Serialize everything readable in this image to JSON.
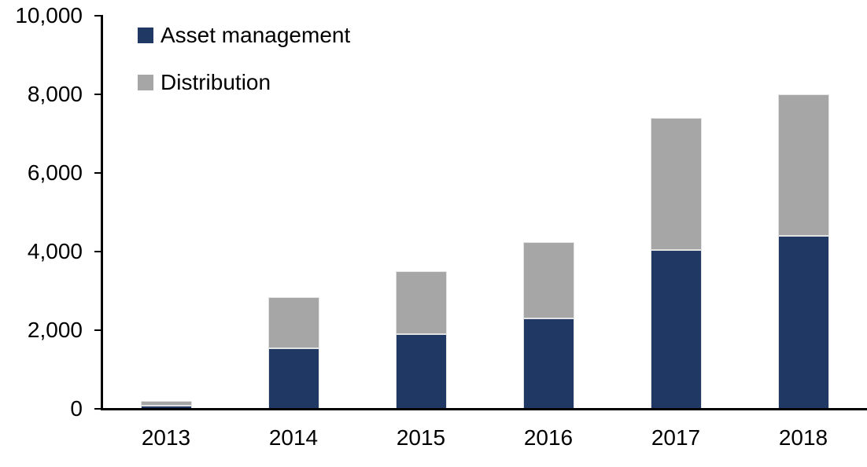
{
  "chart_data": {
    "type": "bar",
    "stacked": true,
    "title": "",
    "xlabel": "",
    "ylabel": "",
    "categories": [
      "2013",
      "2014",
      "2015",
      "2016",
      "2017",
      "2018"
    ],
    "series": [
      {
        "name": "Asset management",
        "color": "#1F3864",
        "values": [
          80,
          1550,
          1900,
          2300,
          4050,
          4400
        ]
      },
      {
        "name": "Distribution",
        "color": "#A6A6A6",
        "values": [
          120,
          1300,
          1600,
          1950,
          3350,
          3600
        ]
      }
    ],
    "totals": [
      200,
      2850,
      3500,
      4250,
      7400,
      8000
    ],
    "ylim": [
      0,
      10000
    ],
    "yticks": [
      0,
      2000,
      4000,
      6000,
      8000,
      10000
    ],
    "ytick_labels": [
      "0",
      "2,000",
      "4,000",
      "6,000",
      "8,000",
      "10,000"
    ],
    "grid": false,
    "legend_position": "top-left-inside",
    "axis_color": "#000000",
    "background_color": "#FFFFFF"
  },
  "legend": {
    "items": [
      {
        "label": "Asset management",
        "color": "#1F3864"
      },
      {
        "label": "Distribution",
        "color": "#A6A6A6"
      }
    ]
  }
}
